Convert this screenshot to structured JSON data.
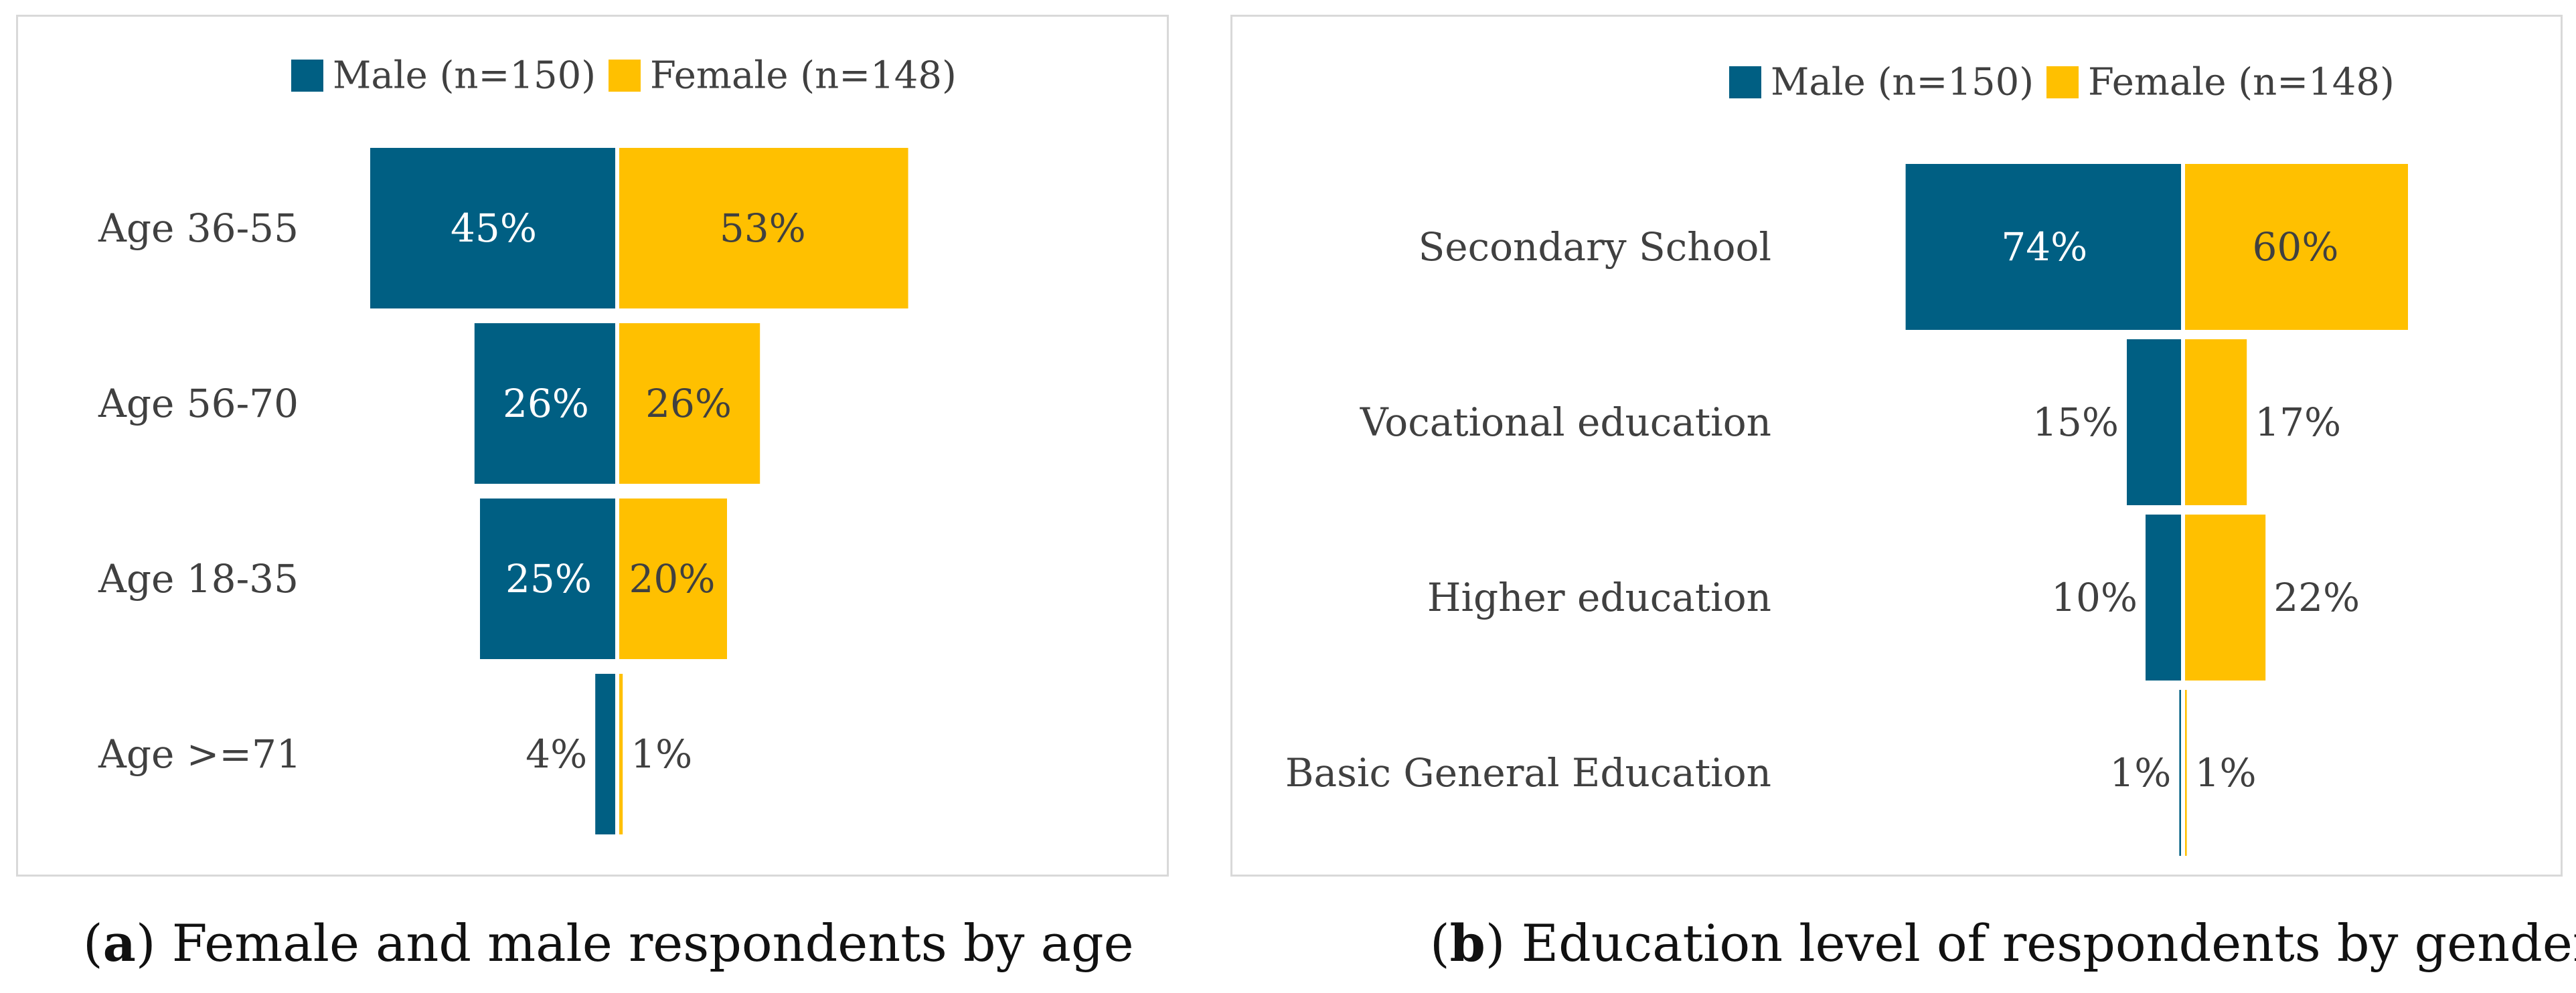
{
  "colors": {
    "male": "#005f83",
    "female": "#ffc000"
  },
  "chart_data": [
    {
      "type": "bar",
      "orientation": "horizontal-diverging",
      "categories": [
        "Age 36-55",
        "Age 56-70",
        "Age 18-35",
        "Age >=71"
      ],
      "series": [
        {
          "name": "Male (n=150)",
          "values": [
            45,
            26,
            25,
            4
          ],
          "labels": [
            "45%",
            "26%",
            "25%",
            "4%"
          ]
        },
        {
          "name": "Female (n=148)",
          "values": [
            53,
            26,
            20,
            1
          ],
          "labels": [
            "53%",
            "26%",
            "20%",
            "1%"
          ]
        }
      ],
      "legend": "top-center",
      "grid": false,
      "caption_letter": "a",
      "caption_text": ") Female and male respondents by age"
    },
    {
      "type": "bar",
      "orientation": "horizontal-diverging",
      "categories": [
        "Secondary School",
        "Vocational education",
        "Higher education",
        "Basic General Education"
      ],
      "series": [
        {
          "name": "Male (n=150)",
          "values": [
            74,
            15,
            10,
            1
          ],
          "labels": [
            "74%",
            "15%",
            "10%",
            "1%"
          ]
        },
        {
          "name": "Female (n=148)",
          "values": [
            60,
            17,
            22,
            1
          ],
          "labels": [
            "60%",
            "17%",
            "22%",
            "1%"
          ]
        }
      ],
      "legend": "top-center",
      "grid": false,
      "caption_letter": "b",
      "caption_text": ") Education level of respondents by gender"
    }
  ]
}
